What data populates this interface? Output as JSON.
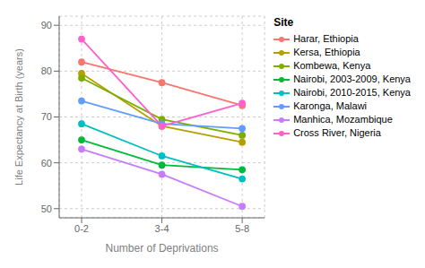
{
  "chart_data": {
    "type": "line",
    "categories": [
      "0-2",
      "3-4",
      "5-8"
    ],
    "series": [
      {
        "name": "Harar, Ethiopia",
        "color": "#f8766d",
        "values": [
          82.0,
          77.5,
          72.5
        ]
      },
      {
        "name": "Kersa, Ethiopia",
        "color": "#b79f00",
        "values": [
          79.5,
          68.0,
          64.5
        ]
      },
      {
        "name": "Kombewa, Kenya",
        "color": "#7cae00",
        "values": [
          78.5,
          69.5,
          66.0
        ]
      },
      {
        "name": "Nairobi, 2003-2009, Kenya",
        "color": "#00ba38",
        "values": [
          65.0,
          59.5,
          58.5
        ]
      },
      {
        "name": "Nairobi, 2010-2015, Kenya",
        "color": "#00bfc4",
        "values": [
          68.5,
          61.5,
          56.5
        ]
      },
      {
        "name": "Karonga, Malawi",
        "color": "#619cff",
        "values": [
          73.5,
          68.5,
          67.5
        ]
      },
      {
        "name": "Manhica, Mozambique",
        "color": "#c77cff",
        "values": [
          63.0,
          57.5,
          50.5
        ]
      },
      {
        "name": "Cross River, Nigeria",
        "color": "#ff61cc",
        "values": [
          87.0,
          68.0,
          73.0
        ]
      }
    ],
    "xlabel": "Number of Deprivations",
    "ylabel": "Life Expectancy at Birth (years)",
    "ylim": [
      48,
      92
    ],
    "yticks": [
      50,
      60,
      70,
      80,
      90
    ],
    "legend_title": "Site",
    "legend": "right",
    "grid": true,
    "marker": "circle",
    "line_style": "solid"
  }
}
